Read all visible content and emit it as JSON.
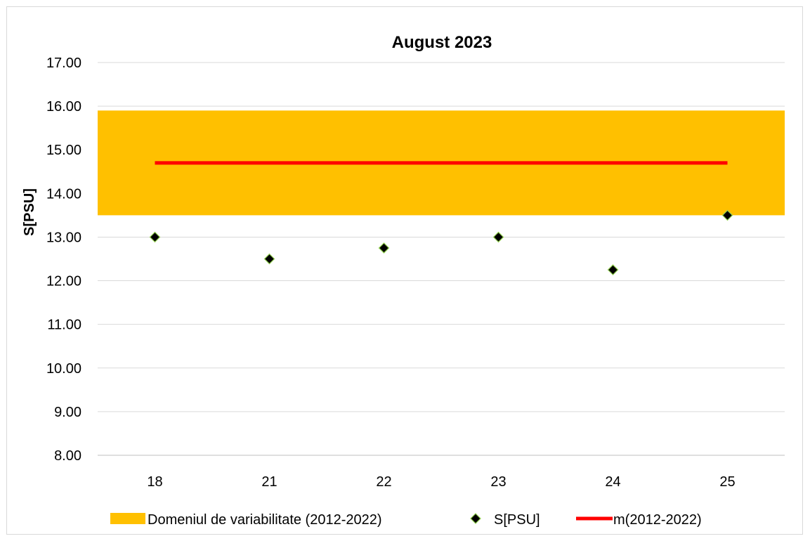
{
  "chart_data": {
    "type": "scatter",
    "title": "August 2023",
    "ylabel": "S[PSU]",
    "xlabel": "",
    "categories": [
      "18",
      "21",
      "22",
      "23",
      "24",
      "25"
    ],
    "ylim": [
      8,
      17
    ],
    "yticks": [
      "8.00",
      "9.00",
      "10.00",
      "11.00",
      "12.00",
      "13.00",
      "14.00",
      "15.00",
      "16.00",
      "17.00"
    ],
    "grid": true,
    "legend_position": "bottom",
    "series": [
      {
        "name": "Domeniul de variabilitate (2012-2022)",
        "kind": "band",
        "low": 13.5,
        "high": 15.9,
        "color": "#FFC000"
      },
      {
        "name": "S[PSU]",
        "kind": "markers",
        "values": [
          13.0,
          12.5,
          12.75,
          13.0,
          12.25,
          13.5
        ],
        "color": "#000000",
        "edge_color": "#92D050"
      },
      {
        "name": "m(2012-2022)",
        "kind": "line",
        "values": [
          14.7,
          14.7,
          14.7,
          14.7,
          14.7,
          14.7
        ],
        "color": "#FF0000"
      }
    ]
  }
}
